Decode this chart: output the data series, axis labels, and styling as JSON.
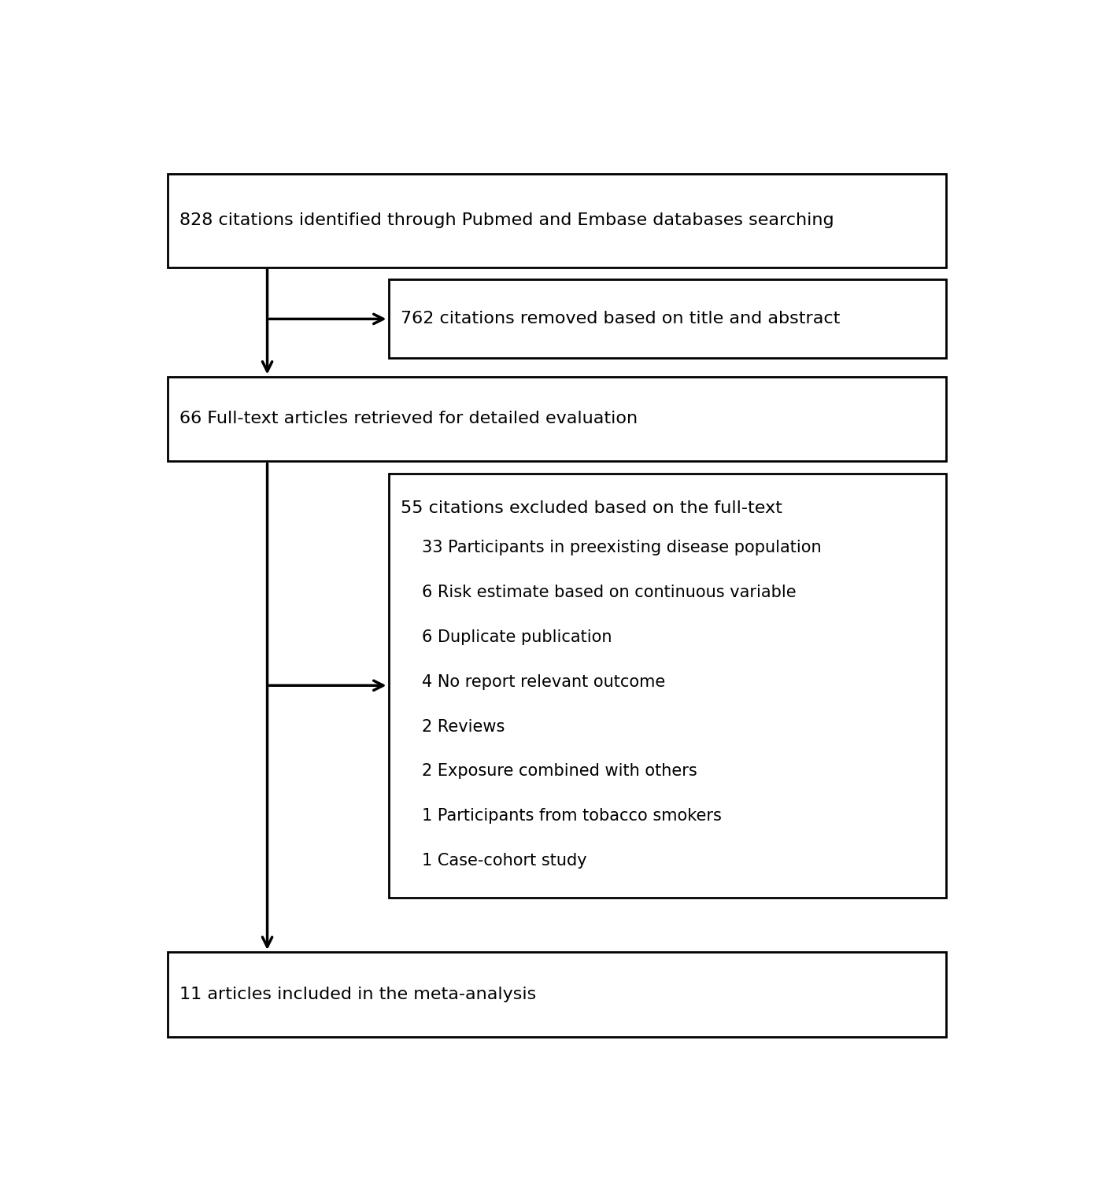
{
  "box1_text": "828 citations identified through Pubmed and Embase databases searching",
  "box2_text": "762 citations removed based on title and abstract",
  "box3_text": "66 Full-text articles retrieved for detailed evaluation",
  "box4_title": "55 citations excluded based on the full-text",
  "box4_items": [
    "33 Participants in preexisting disease population",
    "6 Risk estimate based on continuous variable",
    "6 Duplicate publication",
    "4 No report relevant outcome",
    "2 Reviews",
    "2 Exposure combined with others",
    "1 Participants from tobacco smokers",
    "1 Case-cohort study"
  ],
  "box5_text": "11 articles included in the meta-analysis",
  "bg_color": "#ffffff",
  "box_edge_color": "#000000",
  "text_color": "#000000",
  "arrow_color": "#000000",
  "font_size": 16,
  "font_size_items": 15,
  "lw": 2.0
}
